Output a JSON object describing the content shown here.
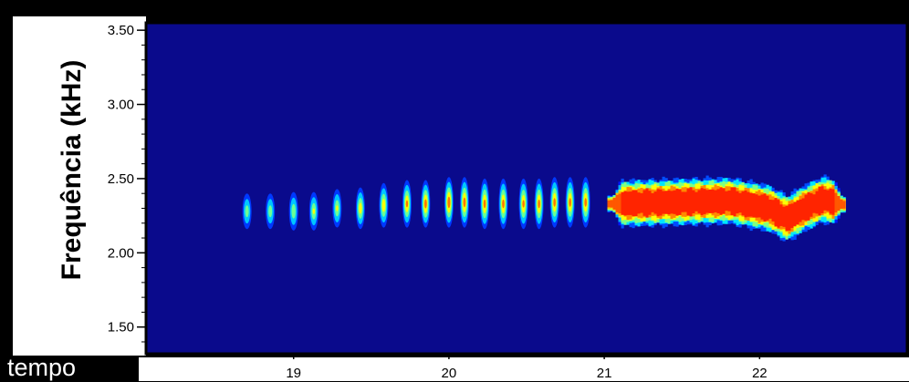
{
  "chart_data": {
    "type": "heatmap",
    "title": "",
    "xlabel": "tempo",
    "ylabel": "Frequência (kHz)",
    "xlim": [
      18.05,
      22.95
    ],
    "ylim": [
      1.32,
      3.55
    ],
    "x_ticks": [
      "19",
      "20",
      "21",
      "22"
    ],
    "x_tick_values": [
      19,
      20,
      21,
      22
    ],
    "y_ticks": [
      "3.50",
      "3.00",
      "2.50",
      "2.00",
      "1.50"
    ],
    "y_tick_values": [
      3.5,
      3.0,
      2.5,
      2.0,
      1.5
    ],
    "grid": false,
    "colormap": "jet",
    "background_color": "#0a0a8c",
    "pulses": [
      {
        "t": 18.7,
        "f": 2.28,
        "spread": 0.12,
        "peak": 0.55
      },
      {
        "t": 18.85,
        "f": 2.28,
        "spread": 0.12,
        "peak": 0.55
      },
      {
        "t": 19.0,
        "f": 2.28,
        "spread": 0.13,
        "peak": 0.58
      },
      {
        "t": 19.13,
        "f": 2.28,
        "spread": 0.13,
        "peak": 0.62
      },
      {
        "t": 19.28,
        "f": 2.3,
        "spread": 0.13,
        "peak": 0.62
      },
      {
        "t": 19.43,
        "f": 2.3,
        "spread": 0.14,
        "peak": 0.7
      },
      {
        "t": 19.58,
        "f": 2.32,
        "spread": 0.15,
        "peak": 0.72
      },
      {
        "t": 19.73,
        "f": 2.33,
        "spread": 0.16,
        "peak": 0.78
      },
      {
        "t": 19.85,
        "f": 2.33,
        "spread": 0.16,
        "peak": 0.82
      },
      {
        "t": 20.0,
        "f": 2.34,
        "spread": 0.17,
        "peak": 0.85
      },
      {
        "t": 20.1,
        "f": 2.34,
        "spread": 0.17,
        "peak": 0.82
      },
      {
        "t": 20.23,
        "f": 2.33,
        "spread": 0.17,
        "peak": 0.8
      },
      {
        "t": 20.35,
        "f": 2.33,
        "spread": 0.17,
        "peak": 0.8
      },
      {
        "t": 20.48,
        "f": 2.33,
        "spread": 0.17,
        "peak": 0.78
      },
      {
        "t": 20.58,
        "f": 2.33,
        "spread": 0.17,
        "peak": 0.8
      },
      {
        "t": 20.68,
        "f": 2.34,
        "spread": 0.17,
        "peak": 0.8
      },
      {
        "t": 20.78,
        "f": 2.34,
        "spread": 0.17,
        "peak": 0.8
      },
      {
        "t": 20.88,
        "f": 2.34,
        "spread": 0.17,
        "peak": 0.8
      }
    ],
    "continuous_band": {
      "t_start": 21.02,
      "t_end": 22.55,
      "center_track": [
        {
          "t": 21.02,
          "f": 2.33
        },
        {
          "t": 21.4,
          "f": 2.34
        },
        {
          "t": 21.8,
          "f": 2.35
        },
        {
          "t": 22.05,
          "f": 2.3
        },
        {
          "t": 22.17,
          "f": 2.23
        },
        {
          "t": 22.28,
          "f": 2.3
        },
        {
          "t": 22.4,
          "f": 2.36
        },
        {
          "t": 22.55,
          "f": 2.32
        }
      ],
      "half_width": 0.12,
      "peak": 0.92
    }
  }
}
